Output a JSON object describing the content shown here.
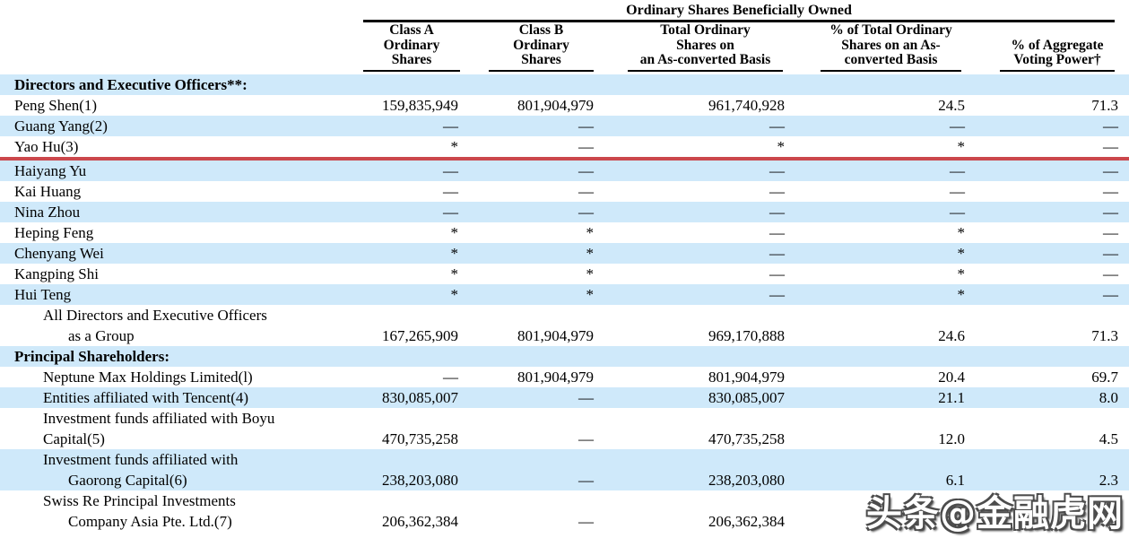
{
  "header": {
    "span_title": "Ordinary Shares Beneficially Owned",
    "columns": [
      {
        "lines": [
          "Class A",
          "Ordinary",
          "Shares"
        ]
      },
      {
        "lines": [
          "Class B",
          "Ordinary",
          "Shares"
        ]
      },
      {
        "lines": [
          "Total Ordinary",
          "Shares on",
          "an As-converted Basis"
        ]
      },
      {
        "lines": [
          "% of Total Ordinary",
          "Shares on an As-",
          "converted Basis"
        ]
      },
      {
        "lines": [
          "% of Aggregate",
          "Voting Power†"
        ]
      }
    ]
  },
  "table": {
    "rows": [
      {
        "type": "section",
        "label_lines": [
          "Directors and Executive Officers**:"
        ],
        "indents": [
          0
        ],
        "cells": [
          "",
          "",
          "",
          "",
          ""
        ],
        "shaded": true,
        "highlight_underline": false
      },
      {
        "type": "data",
        "label_lines": [
          "Peng Shen(1)"
        ],
        "indents": [
          0
        ],
        "cells": [
          "159,835,949",
          "801,904,979",
          "961,740,928",
          "24.5",
          "71.3"
        ],
        "shaded": false,
        "highlight_underline": false
      },
      {
        "type": "data",
        "label_lines": [
          "Guang Yang(2)"
        ],
        "indents": [
          0
        ],
        "cells": [
          "—",
          "—",
          "—",
          "—",
          "—"
        ],
        "shaded": true,
        "highlight_underline": false
      },
      {
        "type": "data",
        "label_lines": [
          "Yao Hu(3)"
        ],
        "indents": [
          0
        ],
        "cells": [
          "*",
          "—",
          "*",
          "*",
          "—"
        ],
        "shaded": false,
        "highlight_underline": true
      },
      {
        "type": "data",
        "label_lines": [
          "Haiyang Yu"
        ],
        "indents": [
          0
        ],
        "cells": [
          "—",
          "—",
          "—",
          "—",
          "—"
        ],
        "shaded": true,
        "highlight_underline": false
      },
      {
        "type": "data",
        "label_lines": [
          "Kai Huang"
        ],
        "indents": [
          0
        ],
        "cells": [
          "—",
          "—",
          "—",
          "—",
          "—"
        ],
        "shaded": false,
        "highlight_underline": false
      },
      {
        "type": "data",
        "label_lines": [
          "Nina Zhou"
        ],
        "indents": [
          0
        ],
        "cells": [
          "—",
          "—",
          "—",
          "—",
          "—"
        ],
        "shaded": true,
        "highlight_underline": false
      },
      {
        "type": "data",
        "label_lines": [
          "Heping Feng"
        ],
        "indents": [
          0
        ],
        "cells": [
          "*",
          "*",
          "—",
          "*",
          "—"
        ],
        "shaded": false,
        "highlight_underline": false
      },
      {
        "type": "data",
        "label_lines": [
          "Chenyang Wei"
        ],
        "indents": [
          0
        ],
        "cells": [
          "*",
          "*",
          "—",
          "*",
          "—"
        ],
        "shaded": true,
        "highlight_underline": false
      },
      {
        "type": "data",
        "label_lines": [
          "Kangping Shi"
        ],
        "indents": [
          0
        ],
        "cells": [
          "*",
          "*",
          "—",
          "*",
          "—"
        ],
        "shaded": false,
        "highlight_underline": false
      },
      {
        "type": "data",
        "label_lines": [
          "Hui Teng"
        ],
        "indents": [
          0
        ],
        "cells": [
          "*",
          "*",
          "—",
          "*",
          "—"
        ],
        "shaded": true,
        "highlight_underline": false
      },
      {
        "type": "data",
        "label_lines": [
          "All Directors and Executive Officers",
          "as a Group"
        ],
        "indents": [
          1,
          2
        ],
        "cells": [
          "167,265,909",
          "801,904,979",
          "969,170,888",
          "24.6",
          "71.3"
        ],
        "shaded": false,
        "highlight_underline": false
      },
      {
        "type": "section",
        "label_lines": [
          "Principal Shareholders:"
        ],
        "indents": [
          0
        ],
        "cells": [
          "",
          "",
          "",
          "",
          ""
        ],
        "shaded": true,
        "highlight_underline": false
      },
      {
        "type": "data",
        "label_lines": [
          "Neptune Max Holdings Limited(l)"
        ],
        "indents": [
          1
        ],
        "cells": [
          "—",
          "801,904,979",
          "801,904,979",
          "20.4",
          "69.7"
        ],
        "shaded": false,
        "highlight_underline": false
      },
      {
        "type": "data",
        "label_lines": [
          "Entities affiliated with Tencent(4)"
        ],
        "indents": [
          1
        ],
        "cells": [
          "830,085,007",
          "—",
          "830,085,007",
          "21.1",
          "8.0"
        ],
        "shaded": true,
        "highlight_underline": false
      },
      {
        "type": "data",
        "label_lines": [
          "Investment funds affiliated with Boyu",
          "Capital(5)"
        ],
        "indents": [
          1,
          1
        ],
        "cells": [
          "470,735,258",
          "—",
          "470,735,258",
          "12.0",
          "4.5"
        ],
        "shaded": false,
        "highlight_underline": false
      },
      {
        "type": "data",
        "label_lines": [
          "Investment funds affiliated with",
          "Gaorong Capital(6)"
        ],
        "indents": [
          1,
          2
        ],
        "cells": [
          "238,203,080",
          "—",
          "238,203,080",
          "6.1",
          "2.3"
        ],
        "shaded": true,
        "highlight_underline": false
      },
      {
        "type": "data",
        "label_lines": [
          "Swiss Re Principal Investments",
          "Company Asia Pte. Ltd.(7)"
        ],
        "indents": [
          1,
          2
        ],
        "cells": [
          "206,362,384",
          "—",
          "206,362,384",
          "5.2",
          ""
        ],
        "shaded": false,
        "highlight_underline": false
      }
    ]
  },
  "watermark": {
    "text": "头条@金融虎网"
  },
  "colors": {
    "row_shade": "#cfe9fa",
    "highlight_line": "#cb474c",
    "rule": "#000000"
  }
}
